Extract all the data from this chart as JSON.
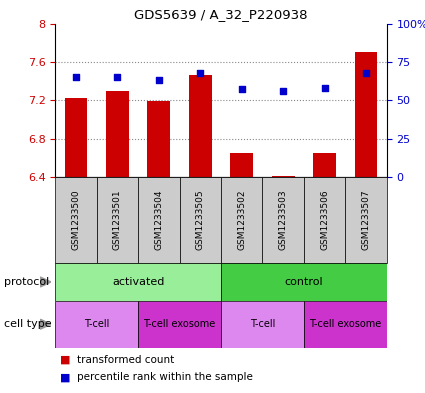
{
  "title": "GDS5639 / A_32_P220938",
  "samples": [
    "GSM1233500",
    "GSM1233501",
    "GSM1233504",
    "GSM1233505",
    "GSM1233502",
    "GSM1233503",
    "GSM1233506",
    "GSM1233507"
  ],
  "transformed_counts": [
    7.22,
    7.3,
    7.19,
    7.46,
    6.65,
    6.41,
    6.65,
    7.7
  ],
  "percentile_ranks": [
    65,
    65,
    63,
    68,
    57,
    56,
    58,
    68
  ],
  "ylim_left": [
    6.4,
    8.0
  ],
  "ylim_right": [
    0,
    100
  ],
  "yticks_left": [
    6.4,
    6.8,
    7.2,
    7.6,
    8.0
  ],
  "ytick_labels_left": [
    "6.4",
    "6.8",
    "7.2",
    "7.6",
    "8"
  ],
  "yticks_right": [
    0,
    25,
    50,
    75,
    100
  ],
  "ytick_labels_right": [
    "0",
    "25",
    "50",
    "75",
    "100%"
  ],
  "bar_color": "#cc0000",
  "dot_color": "#0000cc",
  "bar_bottom": 6.4,
  "sample_box_color": "#cccccc",
  "protocol_groups": [
    {
      "label": "activated",
      "start": 0,
      "end": 4,
      "color": "#99ee99"
    },
    {
      "label": "control",
      "start": 4,
      "end": 8,
      "color": "#44cc44"
    }
  ],
  "cell_type_groups": [
    {
      "label": "T-cell",
      "start": 0,
      "end": 2,
      "color": "#dd88ee"
    },
    {
      "label": "T-cell exosome",
      "start": 2,
      "end": 4,
      "color": "#cc33cc"
    },
    {
      "label": "T-cell",
      "start": 4,
      "end": 6,
      "color": "#dd88ee"
    },
    {
      "label": "T-cell exosome",
      "start": 6,
      "end": 8,
      "color": "#cc33cc"
    }
  ],
  "legend_red": "transformed count",
  "legend_blue": "percentile rank within the sample",
  "left_axis_color": "#cc0000",
  "right_axis_color": "#0000cc",
  "grid_color": "#888888",
  "label_protocol": "protocol",
  "label_cell_type": "cell type"
}
